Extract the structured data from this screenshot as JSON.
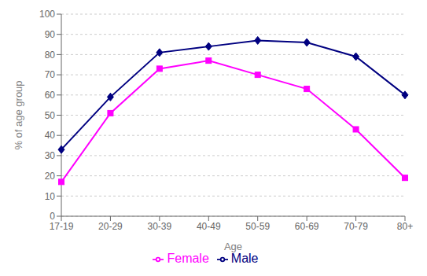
{
  "chart_data": {
    "type": "line",
    "xlabel": "Age",
    "ylabel": "% of age group",
    "categories": [
      "17-19",
      "20-29",
      "30-39",
      "40-49",
      "50-59",
      "60-69",
      "70-79",
      "80+"
    ],
    "series": [
      {
        "name": "Male",
        "color": "#000080",
        "marker": "diamond",
        "values": [
          33,
          59,
          81,
          84,
          87,
          86,
          79,
          60
        ]
      },
      {
        "name": "Female",
        "color": "#FF00FF",
        "marker": "square",
        "values": [
          17,
          51,
          73,
          77,
          70,
          63,
          43,
          19
        ]
      }
    ],
    "ylim": [
      0,
      100
    ],
    "yticks": [
      0,
      10,
      20,
      30,
      40,
      50,
      60,
      70,
      80,
      90,
      100
    ],
    "grid": true,
    "legend": "bottom"
  }
}
